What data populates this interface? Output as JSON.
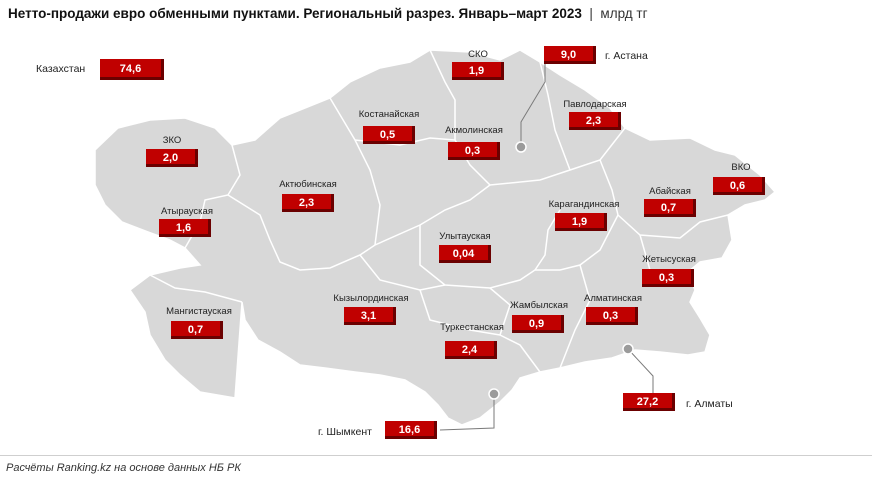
{
  "header": {
    "title": "Нетто-продажи евро обменными пунктами. Региональный разрез. Январь–март 2023",
    "unit": "млрд тг"
  },
  "footer": {
    "source": "Расчёты Ranking.kz на основе данных НБ РК"
  },
  "colors": {
    "value_box": "#c00000",
    "map_fill": "#d8d8d8",
    "map_border": "#ffffff"
  },
  "total": {
    "label": "Казахстан",
    "value": "74,6"
  },
  "regions": [
    {
      "id": "sko",
      "label": "СКО",
      "value": "1,9"
    },
    {
      "id": "kostanay",
      "label": "Костанайская",
      "value": "0,5"
    },
    {
      "id": "akmola",
      "label": "Акмолинская",
      "value": "0,3"
    },
    {
      "id": "pavlodar",
      "label": "Павлодарская",
      "value": "2,3"
    },
    {
      "id": "zko",
      "label": "ЗКО",
      "value": "2,0"
    },
    {
      "id": "aktobe",
      "label": "Актюбинская",
      "value": "2,3"
    },
    {
      "id": "vko",
      "label": "ВКО",
      "value": "0,6"
    },
    {
      "id": "abai",
      "label": "Абайская",
      "value": "0,7"
    },
    {
      "id": "karaganda",
      "label": "Карагандинская",
      "value": "1,9"
    },
    {
      "id": "atyrau",
      "label": "Атырауская",
      "value": "1,6"
    },
    {
      "id": "ulytau",
      "label": "Улытауская",
      "value": "0,04"
    },
    {
      "id": "zhetysu",
      "label": "Жетысуская",
      "value": "0,3"
    },
    {
      "id": "mangystau",
      "label": "Мангистауская",
      "value": "0,7"
    },
    {
      "id": "kyzylorda",
      "label": "Кызылординская",
      "value": "3,1"
    },
    {
      "id": "zhambyl",
      "label": "Жамбылская",
      "value": "0,9"
    },
    {
      "id": "almaty_reg",
      "label": "Алматинская",
      "value": "0,3"
    },
    {
      "id": "turkestan",
      "label": "Туркестанская",
      "value": "2,4"
    }
  ],
  "cities": [
    {
      "id": "astana",
      "label": "г. Астана",
      "value": "9,0"
    },
    {
      "id": "almaty",
      "label": "г. Алматы",
      "value": "27,2"
    },
    {
      "id": "shymkent",
      "label": "г. Шымкент",
      "value": "16,6"
    }
  ]
}
